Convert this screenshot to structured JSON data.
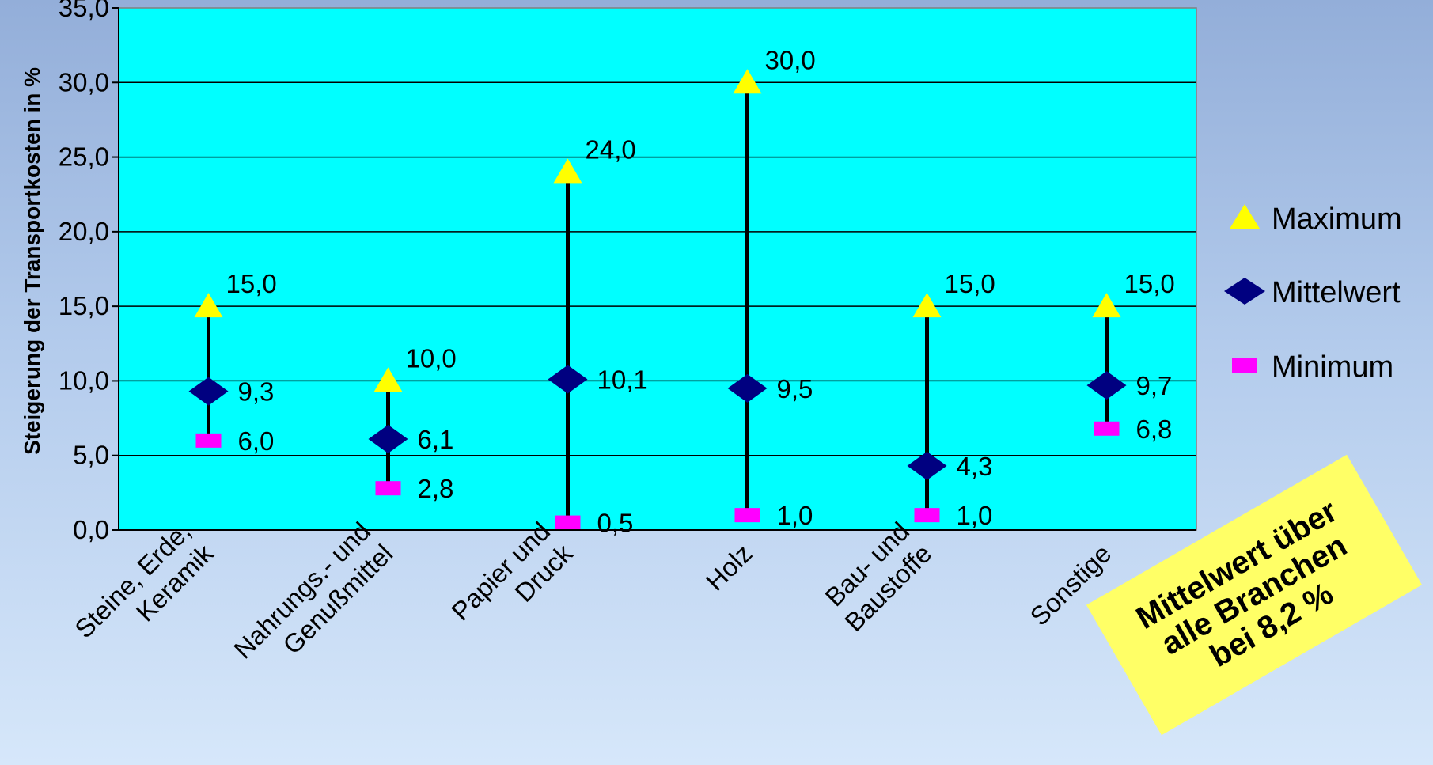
{
  "chart_data": {
    "type": "range",
    "ylabel": "Steigerung der Transportkosten in %",
    "ylim": [
      0,
      35
    ],
    "yticks": [
      "0,0",
      "5,0",
      "10,0",
      "15,0",
      "20,0",
      "25,0",
      "30,0",
      "35,0"
    ],
    "categories": [
      [
        "Steine, Erde,",
        "Keramik"
      ],
      [
        "Nahrungs.- und",
        "Genußmittel"
      ],
      [
        "Papier und",
        "Druck"
      ],
      [
        "Holz"
      ],
      [
        "Bau- und",
        "Baustoffe"
      ],
      [
        "Sonstige"
      ]
    ],
    "series": [
      {
        "name": "Maximum",
        "values": [
          15.0,
          10.0,
          24.0,
          30.0,
          15.0,
          15.0
        ],
        "labels": [
          "15,0",
          "10,0",
          "24,0",
          "30,0",
          "15,0",
          "15,0"
        ]
      },
      {
        "name": "Mittelwert",
        "values": [
          9.3,
          6.1,
          10.1,
          9.5,
          4.3,
          9.7
        ],
        "labels": [
          "9,3",
          "6,1",
          "10,1",
          "9,5",
          "4,3",
          "9,7"
        ]
      },
      {
        "name": "Minimum",
        "values": [
          6.0,
          2.8,
          0.5,
          1.0,
          1.0,
          6.8
        ],
        "labels": [
          "6,0",
          "2,8",
          "0,5",
          "1,0",
          "1,0",
          "6,8"
        ]
      }
    ],
    "colors": {
      "plot_background": "#00ffff",
      "maximum": "#ffff00",
      "mittelwert": "#000080",
      "minimum": "#ff00ff"
    },
    "grid": true,
    "legend_position": "right"
  },
  "note": {
    "lines": [
      "Mittelwert über",
      "alle Branchen",
      "bei 8,2 %"
    ]
  }
}
